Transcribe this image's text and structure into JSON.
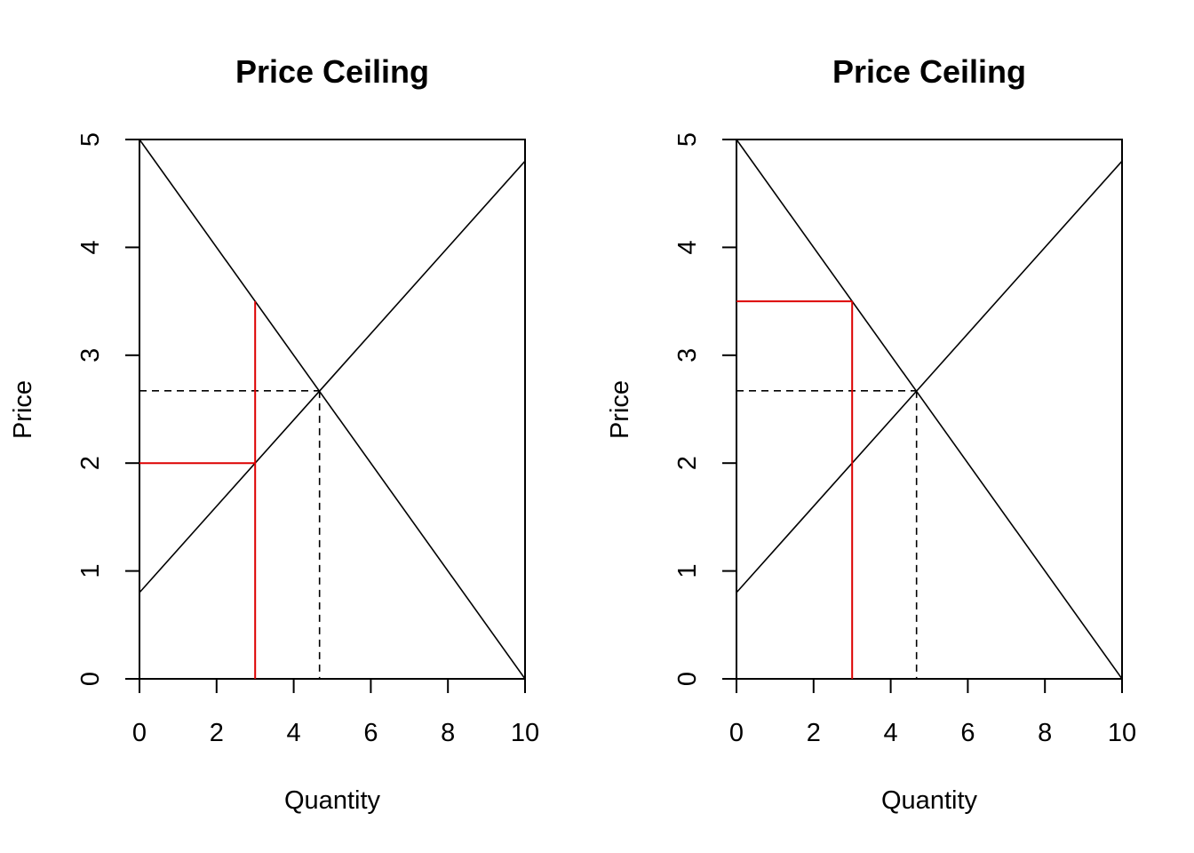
{
  "colors": {
    "accent": "#dd0000",
    "line": "#000000"
  },
  "chart_data": [
    {
      "type": "line",
      "title": "Price Ceiling",
      "xlabel": "Quantity",
      "ylabel": "Price",
      "xlim": [
        0,
        10
      ],
      "ylim": [
        0,
        5
      ],
      "xticks": [
        0,
        2,
        4,
        6,
        8,
        10
      ],
      "yticks": [
        0,
        1,
        2,
        3,
        4,
        5
      ],
      "grid": false,
      "series": [
        {
          "x": [
            0,
            10
          ],
          "y": [
            5,
            0
          ],
          "style": "solid"
        },
        {
          "x": [
            0,
            10
          ],
          "y": [
            0.8,
            4.8
          ],
          "style": "solid"
        }
      ],
      "equilibrium": {
        "x": 4.67,
        "y": 2.67,
        "style": "dashed"
      },
      "ceiling_lines": [
        {
          "x": [
            0,
            3
          ],
          "y": [
            2,
            2
          ]
        },
        {
          "x": [
            3,
            3
          ],
          "y": [
            0,
            3.5
          ]
        }
      ]
    },
    {
      "type": "line",
      "title": "Price Ceiling",
      "xlabel": "Quantity",
      "ylabel": "Price",
      "xlim": [
        0,
        10
      ],
      "ylim": [
        0,
        5
      ],
      "xticks": [
        0,
        2,
        4,
        6,
        8,
        10
      ],
      "yticks": [
        0,
        1,
        2,
        3,
        4,
        5
      ],
      "grid": false,
      "series": [
        {
          "x": [
            0,
            10
          ],
          "y": [
            5,
            0
          ],
          "style": "solid"
        },
        {
          "x": [
            0,
            10
          ],
          "y": [
            0.8,
            4.8
          ],
          "style": "solid"
        }
      ],
      "equilibrium": {
        "x": 4.67,
        "y": 2.67,
        "style": "dashed"
      },
      "ceiling_lines": [
        {
          "x": [
            0,
            3
          ],
          "y": [
            3.5,
            3.5
          ]
        },
        {
          "x": [
            3,
            3
          ],
          "y": [
            0,
            3.5
          ]
        }
      ]
    }
  ]
}
